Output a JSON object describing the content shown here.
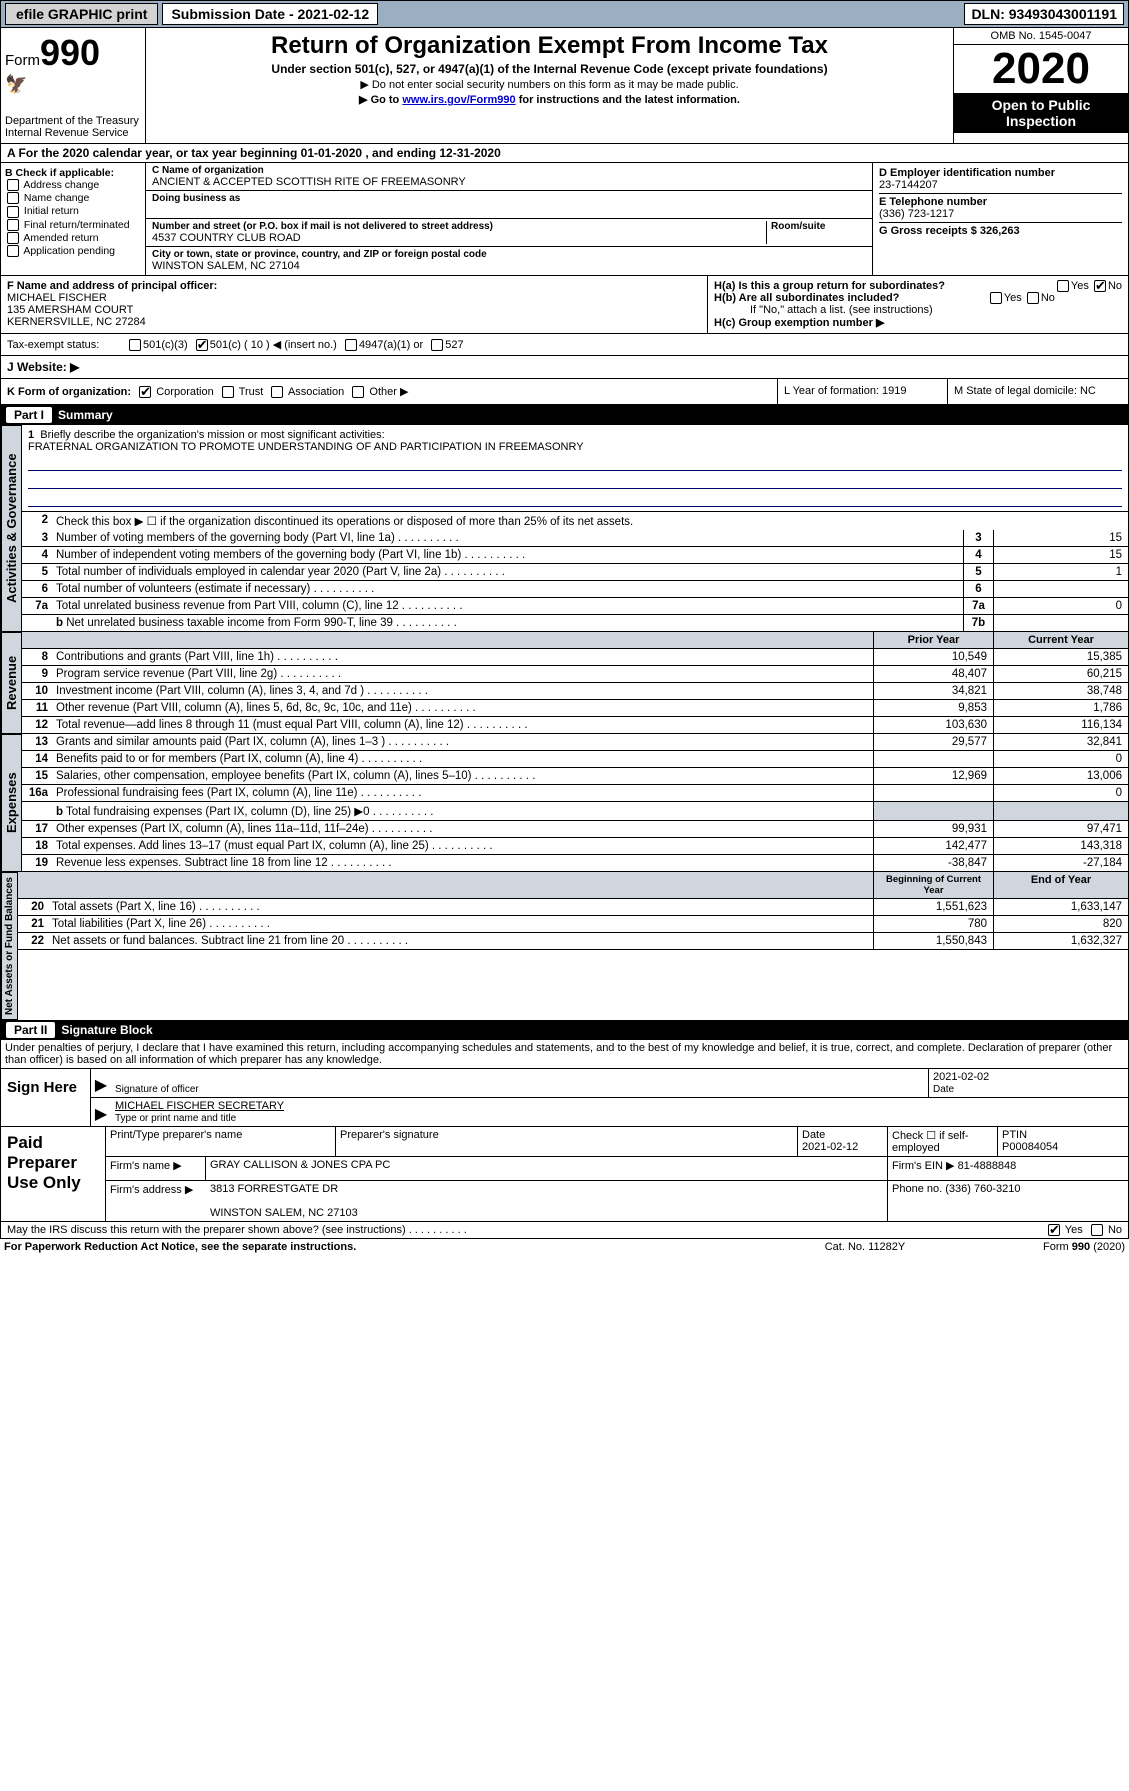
{
  "topBar": {
    "efile": "efile GRAPHIC print",
    "submission": "Submission Date - 2021-02-12",
    "dln": "DLN: 93493043001191"
  },
  "header": {
    "formWord": "Form",
    "formNum": "990",
    "dept": "Department of the Treasury\nInternal Revenue Service",
    "title": "Return of Organization Exempt From Income Tax",
    "subtitle": "Under section 501(c), 527, or 4947(a)(1) of the Internal Revenue Code (except private foundations)",
    "note1": "▶ Do not enter social security numbers on this form as it may be made public.",
    "note2_pre": "▶ Go to ",
    "note2_link": "www.irs.gov/Form990",
    "note2_post": " for instructions and the latest information.",
    "omb": "OMB No. 1545-0047",
    "year": "2020",
    "openPublic": "Open to Public Inspection"
  },
  "lineA": "A For the 2020 calendar year, or tax year beginning 01-01-2020    , and ending 12-31-2020",
  "boxB": {
    "label": "B Check if applicable:",
    "items": [
      "Address change",
      "Name change",
      "Initial return",
      "Final return/terminated",
      "Amended return",
      "Application pending"
    ]
  },
  "boxC": {
    "nameLabel": "C Name of organization",
    "name": "ANCIENT & ACCEPTED SCOTTISH RITE OF FREEMASONRY",
    "dbaLabel": "Doing business as",
    "dba": "",
    "addrLabel": "Number and street (or P.O. box if mail is not delivered to street address)",
    "roomLabel": "Room/suite",
    "addr": "4537 COUNTRY CLUB ROAD",
    "cityLabel": "City or town, state or province, country, and ZIP or foreign postal code",
    "city": "WINSTON SALEM, NC  27104"
  },
  "boxD": {
    "label": "D Employer identification number",
    "val": "23-7144207"
  },
  "boxE": {
    "label": "E Telephone number",
    "val": "(336) 723-1217"
  },
  "boxG": {
    "label": "G Gross receipts $ 326,263"
  },
  "boxF": {
    "label": "F  Name and address of principal officer:",
    "name": "MICHAEL FISCHER",
    "addr1": "135 AMERSHAM COURT",
    "addr2": "KERNERSVILLE, NC  27284"
  },
  "boxH": {
    "ha": "H(a)  Is this a group return for subordinates?",
    "hb": "H(b)  Are all subordinates included?",
    "hbNote": "If \"No,\" attach a list. (see instructions)",
    "hc": "H(c)  Group exemption number ▶",
    "yes": "Yes",
    "no": "No"
  },
  "taxExempt": {
    "label": "Tax-exempt status:",
    "c3": "501(c)(3)",
    "c": "501(c) ( 10 ) ◀ (insert no.)",
    "a1": "4947(a)(1) or",
    "527": "527"
  },
  "website": {
    "label": "J   Website: ▶"
  },
  "klm": {
    "k": "K Form of organization:",
    "corp": "Corporation",
    "trust": "Trust",
    "assoc": "Association",
    "other": "Other ▶",
    "l": "L Year of formation: 1919",
    "m": "M State of legal domicile: NC"
  },
  "partI": {
    "label": "Part I",
    "title": "Summary"
  },
  "gov": {
    "vert": "Activities & Governance",
    "l1": "Briefly describe the organization's mission or most significant activities:",
    "mission": "FRATERNAL ORGANIZATION TO PROMOTE UNDERSTANDING OF AND PARTICIPATION IN FREEMASONRY",
    "l2": "Check this box ▶ ☐  if the organization discontinued its operations or disposed of more than 25% of its net assets.",
    "rows": [
      {
        "n": "3",
        "d": "Number of voting members of the governing body (Part VI, line 1a)",
        "box": "3",
        "v": "15"
      },
      {
        "n": "4",
        "d": "Number of independent voting members of the governing body (Part VI, line 1b)",
        "box": "4",
        "v": "15"
      },
      {
        "n": "5",
        "d": "Total number of individuals employed in calendar year 2020 (Part V, line 2a)",
        "box": "5",
        "v": "1"
      },
      {
        "n": "6",
        "d": "Total number of volunteers (estimate if necessary)",
        "box": "6",
        "v": ""
      },
      {
        "n": "7a",
        "d": "Total unrelated business revenue from Part VIII, column (C), line 12",
        "box": "7a",
        "v": "0"
      },
      {
        "n": "b",
        "sub": true,
        "d": "Net unrelated business taxable income from Form 990-T, line 39",
        "box": "7b",
        "v": ""
      }
    ]
  },
  "revHdr": {
    "prior": "Prior Year",
    "current": "Current Year"
  },
  "revenue": {
    "vert": "Revenue",
    "rows": [
      {
        "n": "8",
        "d": "Contributions and grants (Part VIII, line 1h)",
        "p": "10,549",
        "c": "15,385"
      },
      {
        "n": "9",
        "d": "Program service revenue (Part VIII, line 2g)",
        "p": "48,407",
        "c": "60,215"
      },
      {
        "n": "10",
        "d": "Investment income (Part VIII, column (A), lines 3, 4, and 7d )",
        "p": "34,821",
        "c": "38,748"
      },
      {
        "n": "11",
        "d": "Other revenue (Part VIII, column (A), lines 5, 6d, 8c, 9c, 10c, and 11e)",
        "p": "9,853",
        "c": "1,786"
      },
      {
        "n": "12",
        "d": "Total revenue—add lines 8 through 11 (must equal Part VIII, column (A), line 12)",
        "p": "103,630",
        "c": "116,134"
      }
    ]
  },
  "expenses": {
    "vert": "Expenses",
    "rows": [
      {
        "n": "13",
        "d": "Grants and similar amounts paid (Part IX, column (A), lines 1–3 )",
        "p": "29,577",
        "c": "32,841"
      },
      {
        "n": "14",
        "d": "Benefits paid to or for members (Part IX, column (A), line 4)",
        "p": "",
        "c": "0"
      },
      {
        "n": "15",
        "d": "Salaries, other compensation, employee benefits (Part IX, column (A), lines 5–10)",
        "p": "12,969",
        "c": "13,006"
      },
      {
        "n": "16a",
        "d": "Professional fundraising fees (Part IX, column (A), line 11e)",
        "p": "",
        "c": "0"
      },
      {
        "n": "b",
        "sub": true,
        "d": "Total fundraising expenses (Part IX, column (D), line 25) ▶0",
        "p": "shade",
        "c": "shade"
      },
      {
        "n": "17",
        "d": "Other expenses (Part IX, column (A), lines 11a–11d, 11f–24e)",
        "p": "99,931",
        "c": "97,471"
      },
      {
        "n": "18",
        "d": "Total expenses. Add lines 13–17 (must equal Part IX, column (A), line 25)",
        "p": "142,477",
        "c": "143,318"
      },
      {
        "n": "19",
        "d": "Revenue less expenses. Subtract line 18 from line 12",
        "p": "-38,847",
        "c": "-27,184"
      }
    ]
  },
  "netHdr": {
    "prior": "Beginning of Current Year",
    "current": "End of Year"
  },
  "net": {
    "vert": "Net Assets or Fund Balances",
    "rows": [
      {
        "n": "20",
        "d": "Total assets (Part X, line 16)",
        "p": "1,551,623",
        "c": "1,633,147"
      },
      {
        "n": "21",
        "d": "Total liabilities (Part X, line 26)",
        "p": "780",
        "c": "820"
      },
      {
        "n": "22",
        "d": "Net assets or fund balances. Subtract line 21 from line 20",
        "p": "1,550,843",
        "c": "1,632,327"
      }
    ]
  },
  "partII": {
    "label": "Part II",
    "title": "Signature Block"
  },
  "perjury": "Under penalties of perjury, I declare that I have examined this return, including accompanying schedules and statements, and to the best of my knowledge and belief, it is true, correct, and complete. Declaration of preparer (other than officer) is based on all information of which preparer has any knowledge.",
  "sign": {
    "label": "Sign Here",
    "sigDate": "2021-02-02",
    "sigLabel": "Signature of officer",
    "dateLabel": "Date",
    "name": "MICHAEL FISCHER  SECRETARY",
    "nameLabel": "Type or print name and title"
  },
  "paid": {
    "label": "Paid Preparer Use Only",
    "h1": "Print/Type preparer's name",
    "h2": "Preparer's signature",
    "h3": "Date",
    "h4": "Check ☐ if self-employed",
    "h5": "PTIN",
    "date": "2021-02-12",
    "ptin": "P00084054",
    "firmLabel": "Firm's name    ▶",
    "firm": "GRAY CALLISON & JONES CPA PC",
    "einLabel": "Firm's EIN ▶",
    "ein": "81-4888848",
    "addrLabel": "Firm's address ▶",
    "addr1": "3813 FORRESTGATE DR",
    "addr2": "WINSTON SALEM, NC  27103",
    "phoneLabel": "Phone no.",
    "phone": "(336) 760-3210"
  },
  "discuss": {
    "q": "May the IRS discuss this return with the preparer shown above? (see instructions)",
    "yes": "Yes",
    "no": "No"
  },
  "footer": {
    "left": "For Paperwork Reduction Act Notice, see the separate instructions.",
    "mid": "Cat. No. 11282Y",
    "right": "Form 990 (2020)"
  }
}
